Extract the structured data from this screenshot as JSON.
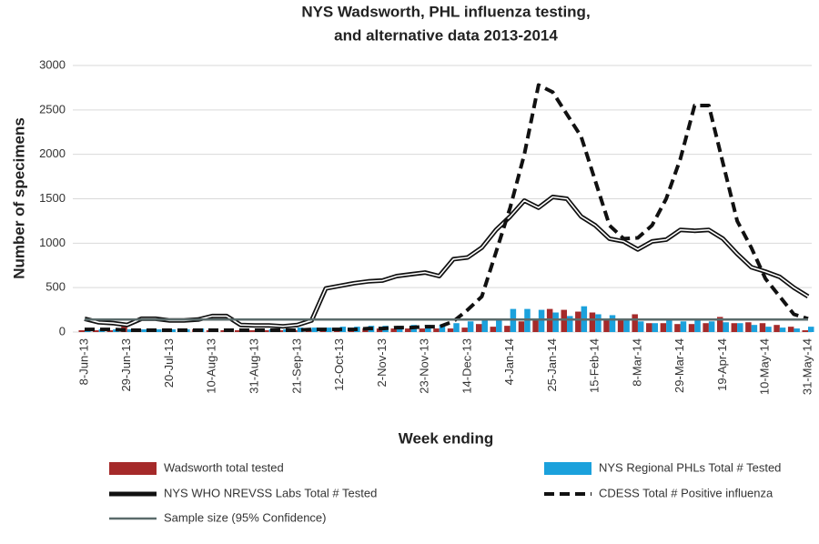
{
  "chart_data": {
    "type": "combo",
    "title": [
      "NYS Wadsworth, PHL influenza testing,",
      "and alternative data 2013-2014"
    ],
    "y_axis_label": "Number of specimens",
    "x_axis_label": "Week ending",
    "categories": [
      "8-Jun-13",
      null,
      null,
      "29-Jun-13",
      null,
      null,
      "20-Jul-13",
      null,
      null,
      "10-Aug-13",
      null,
      null,
      "31-Aug-13",
      null,
      null,
      "21-Sep-13",
      null,
      null,
      "12-Oct-13",
      null,
      null,
      "2-Nov-13",
      null,
      null,
      "23-Nov-13",
      null,
      null,
      "14-Dec-13",
      null,
      null,
      "4-Jan-14",
      null,
      null,
      "25-Jan-14",
      null,
      null,
      "15-Feb-14",
      null,
      null,
      "8-Mar-14",
      null,
      null,
      "29-Mar-14",
      null,
      null,
      "19-Apr-14",
      null,
      null,
      "10-May-14",
      null,
      null,
      "31-May-14"
    ],
    "ylim": [
      0,
      3000
    ],
    "yticks": [
      0,
      500,
      1000,
      1500,
      2000,
      2500,
      3000
    ],
    "grid": true,
    "series": [
      {
        "name": "Wadsworth total tested",
        "kind": "bar",
        "color": "#a52a2a",
        "values": [
          20,
          20,
          20,
          100,
          30,
          30,
          20,
          20,
          30,
          20,
          20,
          20,
          20,
          20,
          20,
          20,
          30,
          30,
          30,
          30,
          40,
          40,
          40,
          40,
          40,
          40,
          40,
          50,
          90,
          60,
          70,
          120,
          130,
          260,
          250,
          230,
          220,
          150,
          130,
          200,
          100,
          100,
          90,
          90,
          100,
          170,
          100,
          110,
          100,
          80,
          60,
          20
        ]
      },
      {
        "name": "NYS Regional PHLs Total # Tested",
        "kind": "bar",
        "color": "#1ba1dc",
        "values": [
          30,
          30,
          30,
          30,
          30,
          30,
          30,
          30,
          40,
          40,
          40,
          30,
          30,
          30,
          30,
          50,
          50,
          50,
          60,
          60,
          70,
          70,
          70,
          80,
          80,
          80,
          100,
          120,
          130,
          150,
          260,
          260,
          250,
          220,
          180,
          290,
          200,
          190,
          150,
          120,
          100,
          140,
          120,
          130,
          120,
          110,
          100,
          80,
          60,
          50,
          40,
          60
        ]
      },
      {
        "name": "NYS WHO NREVSS Labs Total # Tested",
        "kind": "line",
        "style": "double",
        "color": "#111111",
        "values": [
          150,
          110,
          100,
          80,
          150,
          150,
          130,
          130,
          140,
          180,
          180,
          80,
          75,
          75,
          65,
          80,
          130,
          490,
          520,
          550,
          570,
          580,
          630,
          650,
          670,
          630,
          820,
          840,
          950,
          1150,
          1300,
          1480,
          1400,
          1520,
          1500,
          1300,
          1200,
          1050,
          1020,
          930,
          1020,
          1040,
          1150,
          1140,
          1150,
          1050,
          880,
          730,
          680,
          620,
          500,
          400
        ]
      },
      {
        "name": "CDESS Total # Positive influenza",
        "kind": "line",
        "style": "dashed",
        "color": "#111111",
        "values": [
          30,
          30,
          30,
          20,
          20,
          20,
          20,
          20,
          20,
          20,
          20,
          20,
          20,
          20,
          20,
          20,
          30,
          30,
          30,
          30,
          40,
          40,
          50,
          50,
          60,
          60,
          120,
          250,
          400,
          900,
          1400,
          2000,
          2780,
          2700,
          2450,
          2200,
          1700,
          1200,
          1050,
          1060,
          1200,
          1500,
          1950,
          2550,
          2550,
          1900,
          1250,
          950,
          600,
          400,
          200,
          150
        ]
      },
      {
        "name": "Sample size (95% Confidence)",
        "kind": "line",
        "style": "solid",
        "color": "#5a6b6b",
        "values": [
          140,
          140,
          140,
          140,
          140,
          140,
          140,
          140,
          140,
          140,
          140,
          140,
          140,
          140,
          140,
          140,
          140,
          140,
          140,
          140,
          140,
          140,
          140,
          140,
          140,
          140,
          140,
          140,
          140,
          140,
          140,
          140,
          140,
          140,
          140,
          140,
          140,
          140,
          140,
          140,
          140,
          140,
          140,
          140,
          140,
          140,
          140,
          140,
          140,
          140,
          140,
          140
        ]
      }
    ]
  }
}
